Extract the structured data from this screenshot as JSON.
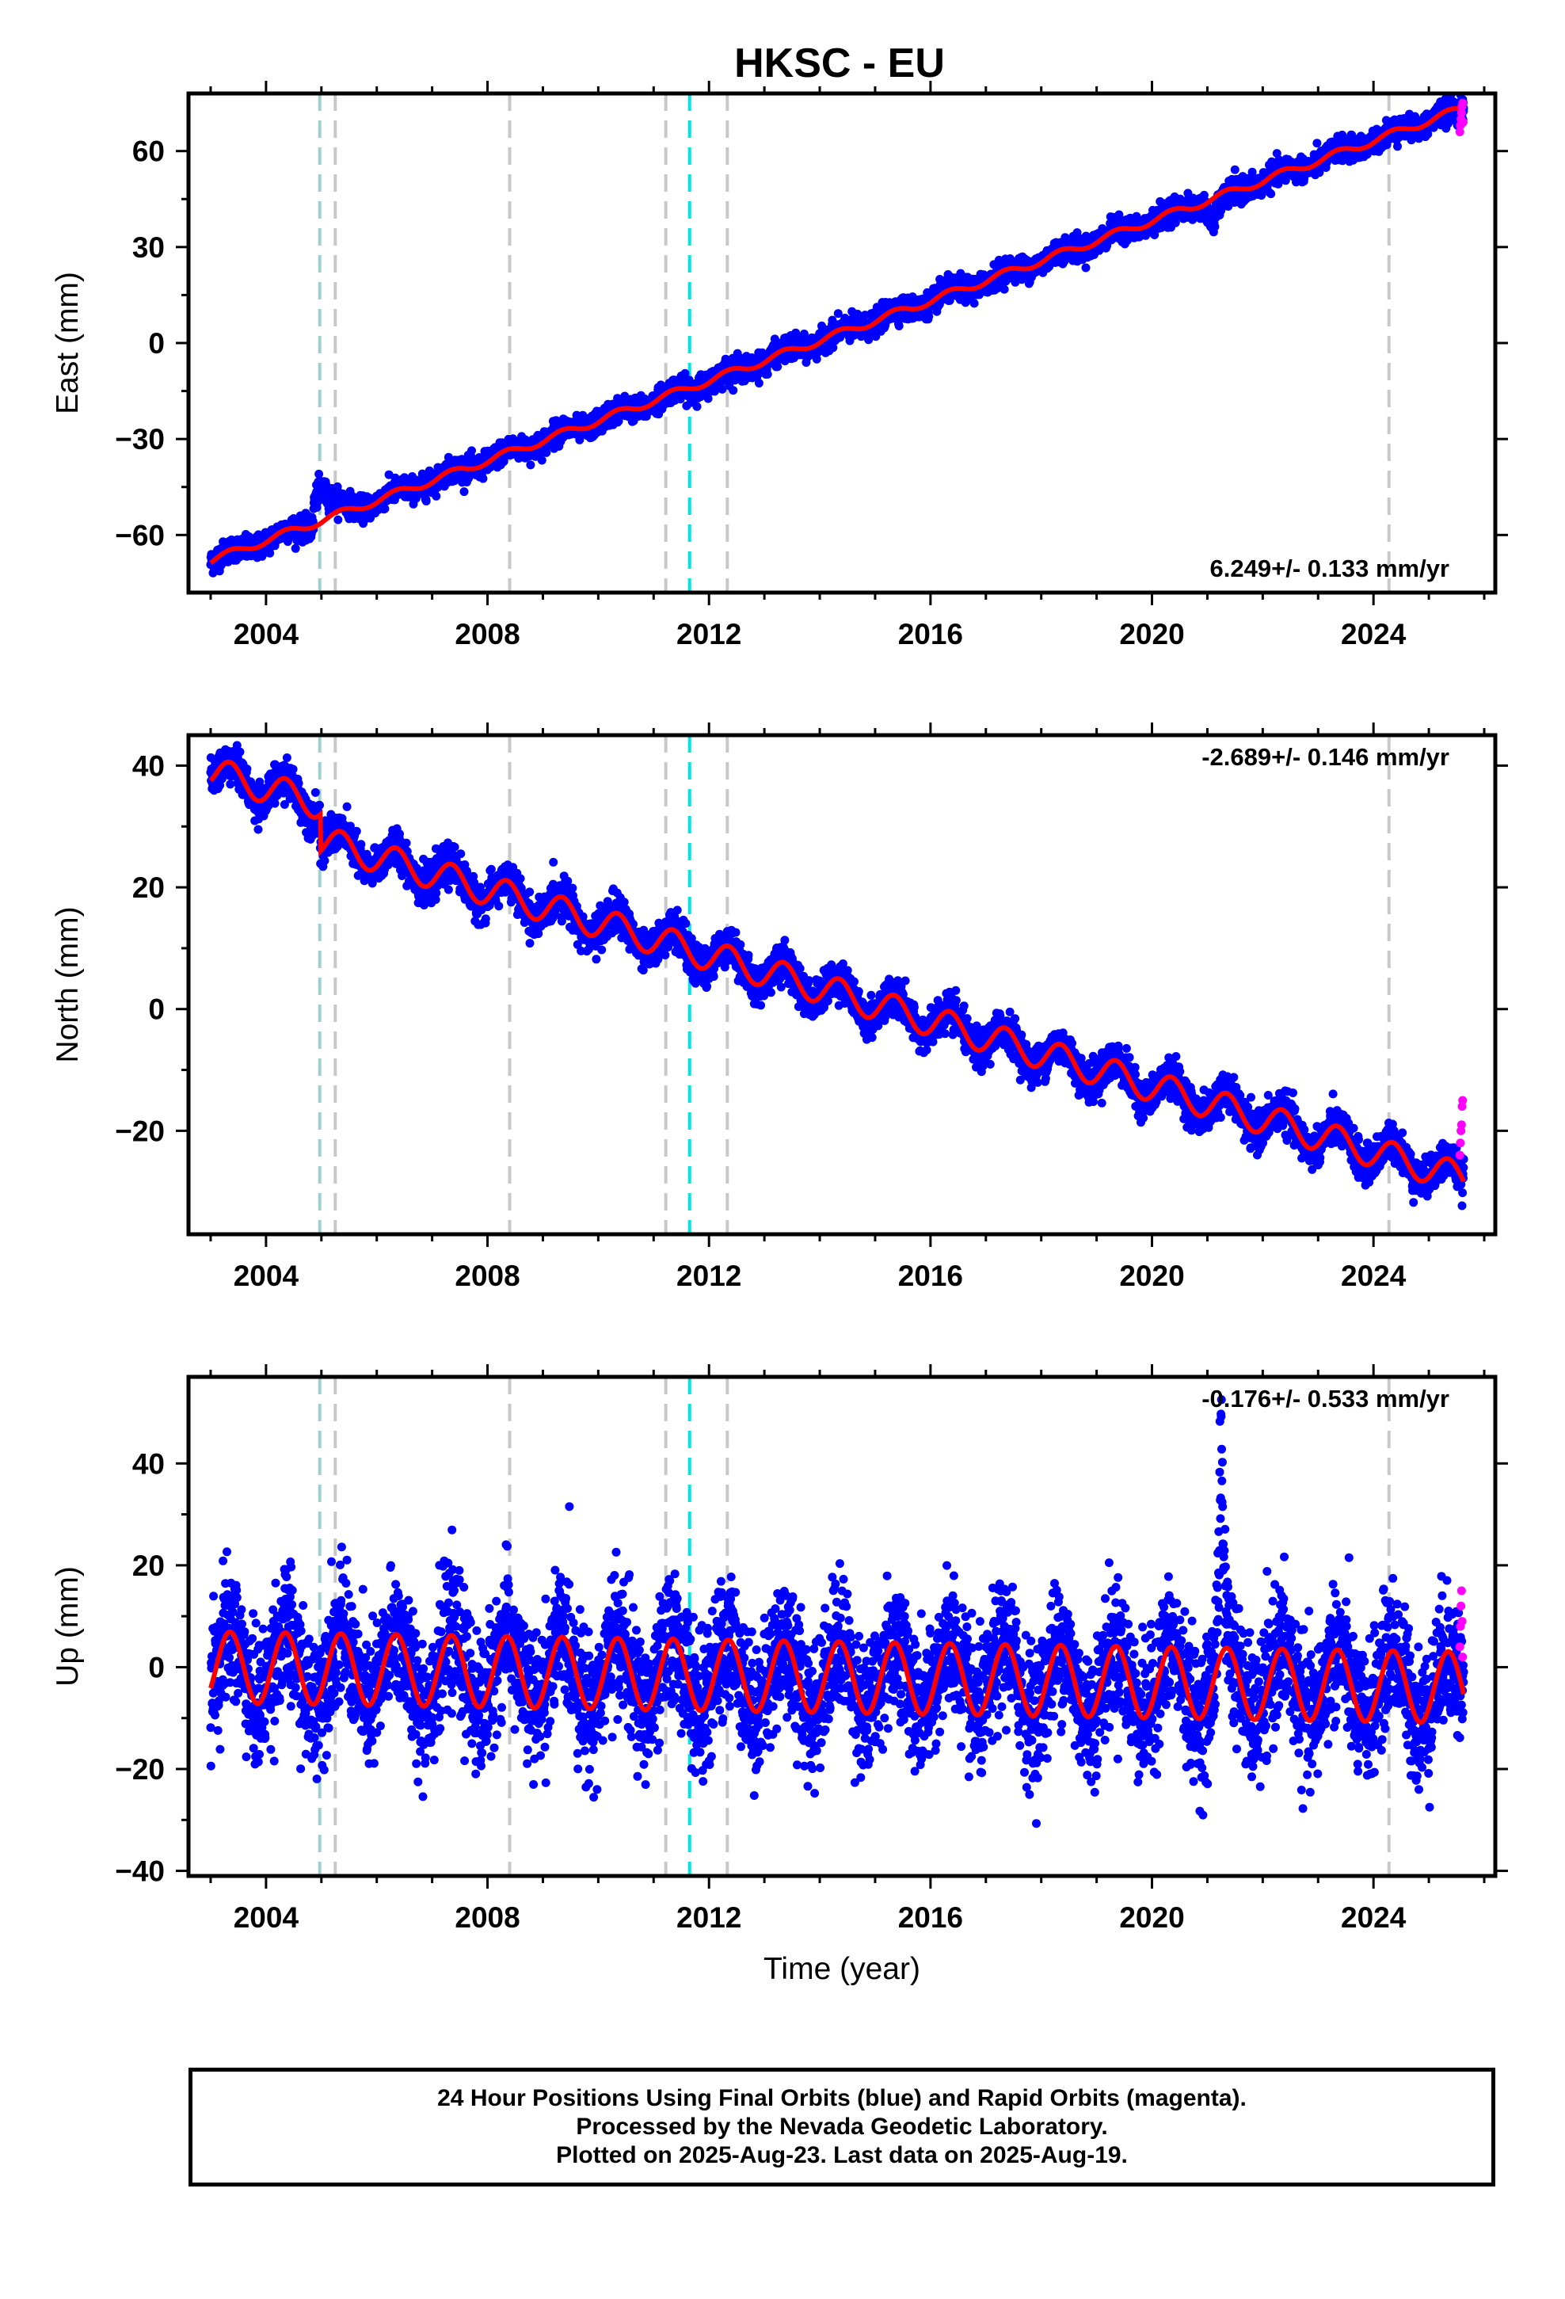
{
  "title": "HKSC - EU",
  "colors": {
    "final_orbits": "#0000ff",
    "rapid_orbits": "#ff00ff",
    "model_fit": "#ff0000",
    "event_gray": "#c8c8c8",
    "event_cyan": "#00e5e5",
    "event_gray_cyan": "#9fcfcf"
  },
  "chart_data": [
    {
      "type": "scatter",
      "component": "East",
      "ylabel": "East (mm)",
      "xlabel": "",
      "xlim": [
        2002.6,
        2026.2
      ],
      "ylim": [
        -78,
        78
      ],
      "xticks": [
        2004,
        2008,
        2012,
        2016,
        2020,
        2024
      ],
      "yticks": [
        -60,
        -30,
        0,
        30,
        60
      ],
      "rate_label": "6.249+/- 0.133 mm/yr",
      "rate_label_position": "bottom-right",
      "rate_mm_per_yr": 6.249,
      "intercept_mm_at_2003": -68,
      "seasonal_amplitude_mm": 1.2,
      "noise_sd_mm": 1.8,
      "offsets": [
        {
          "year": 2004.98,
          "step_mm": 0
        }
      ],
      "transients": [
        {
          "year": 2004.98,
          "peak_mm": 12,
          "decay_yr": 0.25
        },
        {
          "year": 2021.1,
          "peak_mm": -8,
          "decay_yr": 0.15
        }
      ],
      "rapid_points": [
        [
          2025.56,
          66
        ],
        [
          2025.57,
          68
        ],
        [
          2025.58,
          70
        ],
        [
          2025.59,
          72
        ],
        [
          2025.6,
          74
        ],
        [
          2025.61,
          75
        ],
        [
          2025.62,
          69
        ]
      ],
      "first_epoch": 2003.0,
      "last_epoch": 2025.63
    },
    {
      "type": "scatter",
      "component": "North",
      "ylabel": "North (mm)",
      "xlabel": "",
      "xlim": [
        2002.6,
        2026.2
      ],
      "ylim": [
        -37,
        45
      ],
      "xticks": [
        2004,
        2008,
        2012,
        2016,
        2020,
        2024
      ],
      "yticks": [
        -20,
        0,
        20,
        40
      ],
      "rate_label": "-2.689+/- 0.146 mm/yr",
      "rate_label_position": "top-right",
      "rate_mm_per_yr": -2.689,
      "intercept_mm_at_2003": 39,
      "seasonal_amplitude_mm": 2.5,
      "noise_sd_mm": 1.5,
      "offsets": [
        {
          "year": 2004.98,
          "step_mm": -6
        }
      ],
      "transients": [],
      "rapid_points": [
        [
          2025.56,
          -24
        ],
        [
          2025.57,
          -22
        ],
        [
          2025.58,
          -20
        ],
        [
          2025.59,
          -19
        ],
        [
          2025.6,
          -16
        ],
        [
          2025.61,
          -15
        ]
      ],
      "first_epoch": 2003.0,
      "last_epoch": 2025.63
    },
    {
      "type": "scatter",
      "component": "Up",
      "ylabel": "Up (mm)",
      "xlabel": "Time (year)",
      "xlim": [
        2002.6,
        2026.2
      ],
      "ylim": [
        -41,
        57
      ],
      "xticks": [
        2004,
        2008,
        2012,
        2016,
        2020,
        2024
      ],
      "yticks": [
        -40,
        -20,
        0,
        20,
        40
      ],
      "rate_label": "-0.176+/- 0.533 mm/yr",
      "rate_label_position": "top-right",
      "rate_mm_per_yr": -0.176,
      "intercept_mm_at_2003": 0,
      "seasonal_amplitude_mm": 7,
      "noise_sd_mm": 6.5,
      "offsets": [],
      "transients": [
        {
          "year": 2021.25,
          "peak_mm": 45,
          "decay_yr": 0.05
        }
      ],
      "rapid_points": [
        [
          2025.56,
          4
        ],
        [
          2025.57,
          8
        ],
        [
          2025.58,
          12
        ],
        [
          2025.59,
          15
        ],
        [
          2025.6,
          9
        ],
        [
          2025.61,
          2
        ]
      ],
      "first_epoch": 2003.0,
      "last_epoch": 2025.63
    }
  ],
  "events": [
    {
      "year": 2004.97,
      "color": "gray_cyan"
    },
    {
      "year": 2005.25,
      "color": "gray"
    },
    {
      "year": 2008.4,
      "color": "gray"
    },
    {
      "year": 2011.22,
      "color": "gray"
    },
    {
      "year": 2011.65,
      "color": "cyan"
    },
    {
      "year": 2012.33,
      "color": "gray"
    },
    {
      "year": 2024.28,
      "color": "gray"
    }
  ],
  "caption": {
    "line1": "24 Hour Positions Using Final Orbits (blue) and Rapid Orbits (magenta).",
    "line2": "Processed by the Nevada Geodetic Laboratory.",
    "line3": "Plotted on 2025-Aug-23. Last data on 2025-Aug-19."
  }
}
